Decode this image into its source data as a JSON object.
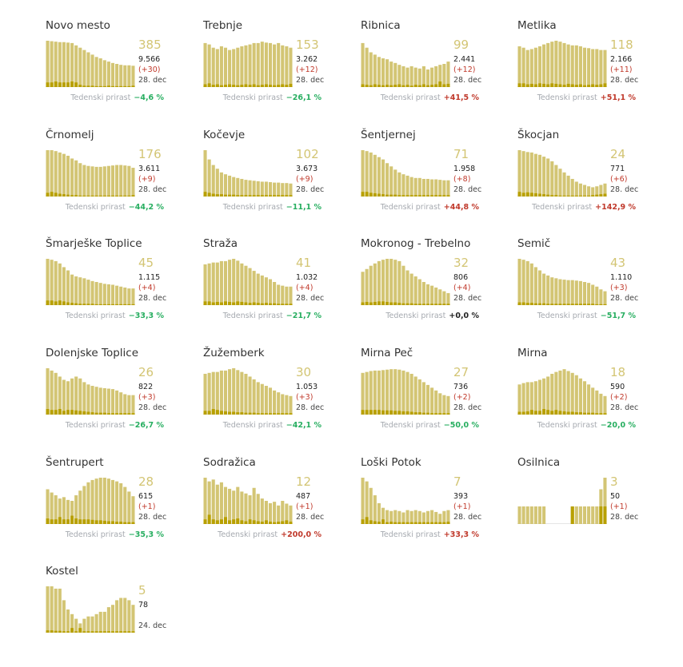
{
  "labels": {
    "growth_label": "Tedenski prirast"
  },
  "colors": {
    "bar": "#d3c574",
    "bar_new": "#b8a000",
    "positive": "#c0392b",
    "negative": "#27ae60"
  },
  "chart_data": [
    {
      "type": "bar",
      "name": "Novo mesto",
      "active": "385",
      "total": "9.566",
      "delta": "(+30)",
      "date": "28. dec",
      "growth": "−4,6 %",
      "trend": "neg",
      "values": [
        1.0,
        0.99,
        0.98,
        0.97,
        0.97,
        0.96,
        0.95,
        0.9,
        0.85,
        0.8,
        0.75,
        0.7,
        0.65,
        0.62,
        0.58,
        0.55,
        0.52,
        0.5,
        0.48,
        0.47,
        0.47,
        0.46
      ],
      "new": [
        0.1,
        0.1,
        0.12,
        0.1,
        0.1,
        0.1,
        0.12,
        0.1,
        0.05,
        0.03,
        0.03,
        0.03,
        0.02,
        0.02,
        0.02,
        0.03,
        0.02,
        0.02,
        0.02,
        0.02,
        0.02,
        0.03
      ]
    },
    {
      "type": "bar",
      "name": "Trebnje",
      "active": "153",
      "total": "3.262",
      "delta": "(+12)",
      "date": "28. dec",
      "growth": "−26,1 %",
      "trend": "neg",
      "values": [
        0.95,
        0.92,
        0.85,
        0.82,
        0.88,
        0.85,
        0.8,
        0.82,
        0.85,
        0.88,
        0.9,
        0.92,
        0.95,
        0.95,
        0.98,
        0.96,
        0.95,
        0.92,
        0.95,
        0.9,
        0.88,
        0.85
      ],
      "new": [
        0.06,
        0.08,
        0.05,
        0.06,
        0.04,
        0.05,
        0.06,
        0.05,
        0.04,
        0.05,
        0.06,
        0.05,
        0.06,
        0.04,
        0.05,
        0.06,
        0.05,
        0.04,
        0.05,
        0.06,
        0.05,
        0.07
      ]
    },
    {
      "type": "bar",
      "name": "Ribnica",
      "active": "99",
      "total": "2.441",
      "delta": "(+12)",
      "date": "28. dec",
      "growth": "+41,5 %",
      "trend": "pos",
      "values": [
        0.95,
        0.85,
        0.75,
        0.7,
        0.65,
        0.62,
        0.6,
        0.55,
        0.52,
        0.48,
        0.45,
        0.42,
        0.45,
        0.42,
        0.4,
        0.45,
        0.38,
        0.42,
        0.45,
        0.48,
        0.5,
        0.55
      ],
      "new": [
        0.06,
        0.05,
        0.04,
        0.06,
        0.05,
        0.04,
        0.05,
        0.04,
        0.05,
        0.06,
        0.04,
        0.05,
        0.03,
        0.05,
        0.04,
        0.06,
        0.04,
        0.05,
        0.06,
        0.12,
        0.06,
        0.07
      ]
    },
    {
      "type": "bar",
      "name": "Metlika",
      "active": "118",
      "total": "2.166",
      "delta": "(+11)",
      "date": "28. dec",
      "growth": "+51,1 %",
      "trend": "pos",
      "values": [
        0.88,
        0.85,
        0.8,
        0.82,
        0.85,
        0.88,
        0.92,
        0.95,
        0.98,
        1.0,
        0.98,
        0.95,
        0.92,
        0.9,
        0.9,
        0.88,
        0.85,
        0.84,
        0.82,
        0.82,
        0.8,
        0.8
      ],
      "new": [
        0.08,
        0.08,
        0.06,
        0.07,
        0.06,
        0.08,
        0.07,
        0.06,
        0.08,
        0.07,
        0.06,
        0.05,
        0.07,
        0.06,
        0.05,
        0.06,
        0.04,
        0.05,
        0.06,
        0.05,
        0.06,
        0.08
      ]
    },
    {
      "type": "bar",
      "name": "Črnomelj",
      "active": "176",
      "total": "3.611",
      "delta": "(+9)",
      "date": "28. dec",
      "growth": "−44,2 %",
      "trend": "neg",
      "values": [
        1.0,
        1.0,
        0.98,
        0.95,
        0.92,
        0.88,
        0.82,
        0.78,
        0.72,
        0.68,
        0.66,
        0.65,
        0.64,
        0.64,
        0.65,
        0.66,
        0.67,
        0.68,
        0.68,
        0.67,
        0.66,
        0.62
      ],
      "new": [
        0.08,
        0.1,
        0.08,
        0.06,
        0.05,
        0.04,
        0.03,
        0.03,
        0.02,
        0.02,
        0.02,
        0.02,
        0.02,
        0.02,
        0.02,
        0.02,
        0.02,
        0.02,
        0.02,
        0.02,
        0.02,
        0.03
      ]
    },
    {
      "type": "bar",
      "name": "Kočevje",
      "active": "102",
      "total": "3.673",
      "delta": "(+9)",
      "date": "28. dec",
      "growth": "−11,1 %",
      "trend": "neg",
      "values": [
        1.0,
        0.8,
        0.68,
        0.6,
        0.52,
        0.48,
        0.45,
        0.42,
        0.4,
        0.38,
        0.36,
        0.35,
        0.34,
        0.33,
        0.32,
        0.32,
        0.31,
        0.3,
        0.3,
        0.29,
        0.29,
        0.28
      ],
      "new": [
        0.1,
        0.08,
        0.06,
        0.05,
        0.05,
        0.04,
        0.04,
        0.04,
        0.03,
        0.03,
        0.03,
        0.03,
        0.03,
        0.03,
        0.03,
        0.03,
        0.03,
        0.03,
        0.03,
        0.03,
        0.03,
        0.03
      ]
    },
    {
      "type": "bar",
      "name": "Šentjernej",
      "active": "71",
      "total": "1.958",
      "delta": "(+8)",
      "date": "28. dec",
      "growth": "+44,8 %",
      "trend": "pos",
      "values": [
        1.0,
        0.98,
        0.95,
        0.9,
        0.85,
        0.8,
        0.72,
        0.65,
        0.58,
        0.52,
        0.48,
        0.45,
        0.42,
        0.4,
        0.4,
        0.38,
        0.38,
        0.37,
        0.37,
        0.36,
        0.35,
        0.35
      ],
      "new": [
        0.1,
        0.1,
        0.08,
        0.07,
        0.06,
        0.05,
        0.04,
        0.04,
        0.04,
        0.03,
        0.03,
        0.03,
        0.03,
        0.03,
        0.03,
        0.03,
        0.03,
        0.03,
        0.03,
        0.03,
        0.03,
        0.03
      ]
    },
    {
      "type": "bar",
      "name": "Škocjan",
      "active": "24",
      "total": "771",
      "delta": "(+6)",
      "date": "28. dec",
      "growth": "+142,9 %",
      "trend": "pos",
      "values": [
        1.0,
        0.98,
        0.96,
        0.95,
        0.92,
        0.9,
        0.86,
        0.82,
        0.76,
        0.68,
        0.6,
        0.52,
        0.45,
        0.38,
        0.32,
        0.28,
        0.25,
        0.22,
        0.2,
        0.22,
        0.25,
        0.28
      ],
      "new": [
        0.1,
        0.08,
        0.09,
        0.08,
        0.07,
        0.06,
        0.05,
        0.04,
        0.03,
        0.03,
        0.02,
        0.02,
        0.02,
        0.02,
        0.02,
        0.02,
        0.02,
        0.02,
        0.03,
        0.04,
        0.05,
        0.06
      ]
    },
    {
      "type": "bar",
      "name": "Šmarješke Toplice",
      "active": "45",
      "total": "1.115",
      "delta": "(+4)",
      "date": "28. dec",
      "growth": "−33,3 %",
      "trend": "neg",
      "values": [
        1.0,
        0.98,
        0.95,
        0.9,
        0.82,
        0.75,
        0.66,
        0.62,
        0.6,
        0.58,
        0.55,
        0.52,
        0.5,
        0.48,
        0.46,
        0.45,
        0.44,
        0.42,
        0.4,
        0.38,
        0.36,
        0.36
      ],
      "new": [
        0.1,
        0.1,
        0.08,
        0.1,
        0.08,
        0.06,
        0.05,
        0.04,
        0.03,
        0.03,
        0.03,
        0.03,
        0.02,
        0.02,
        0.02,
        0.02,
        0.02,
        0.02,
        0.02,
        0.02,
        0.02,
        0.02
      ]
    },
    {
      "type": "bar",
      "name": "Straža",
      "active": "41",
      "total": "1.032",
      "delta": "(+4)",
      "date": "28. dec",
      "growth": "−21,7 %",
      "trend": "neg",
      "values": [
        0.88,
        0.9,
        0.92,
        0.92,
        0.95,
        0.95,
        0.98,
        1.0,
        0.96,
        0.9,
        0.85,
        0.8,
        0.74,
        0.68,
        0.64,
        0.6,
        0.56,
        0.5,
        0.44,
        0.42,
        0.4,
        0.4
      ],
      "new": [
        0.08,
        0.08,
        0.06,
        0.07,
        0.06,
        0.08,
        0.07,
        0.06,
        0.08,
        0.07,
        0.06,
        0.05,
        0.06,
        0.05,
        0.04,
        0.05,
        0.04,
        0.04,
        0.03,
        0.03,
        0.03,
        0.03
      ]
    },
    {
      "type": "bar",
      "name": "Mokronog - Trebelno",
      "active": "32",
      "total": "806",
      "delta": "(+4)",
      "date": "28. dec",
      "growth": "+0,0 %",
      "trend": "zero",
      "values": [
        0.72,
        0.78,
        0.85,
        0.9,
        0.95,
        0.98,
        1.0,
        1.0,
        0.98,
        0.95,
        0.85,
        0.75,
        0.68,
        0.62,
        0.56,
        0.5,
        0.45,
        0.42,
        0.38,
        0.34,
        0.3,
        0.26
      ],
      "new": [
        0.06,
        0.07,
        0.06,
        0.07,
        0.08,
        0.08,
        0.07,
        0.06,
        0.06,
        0.05,
        0.04,
        0.04,
        0.04,
        0.03,
        0.03,
        0.03,
        0.03,
        0.03,
        0.03,
        0.03,
        0.03,
        0.03
      ]
    },
    {
      "type": "bar",
      "name": "Semič",
      "active": "43",
      "total": "1.110",
      "delta": "(+3)",
      "date": "28. dec",
      "growth": "−51,7 %",
      "trend": "neg",
      "values": [
        1.0,
        0.98,
        0.95,
        0.9,
        0.82,
        0.75,
        0.68,
        0.64,
        0.6,
        0.58,
        0.56,
        0.55,
        0.54,
        0.54,
        0.53,
        0.52,
        0.5,
        0.48,
        0.44,
        0.4,
        0.34,
        0.3
      ],
      "new": [
        0.06,
        0.06,
        0.05,
        0.05,
        0.04,
        0.04,
        0.04,
        0.03,
        0.03,
        0.03,
        0.03,
        0.03,
        0.03,
        0.03,
        0.03,
        0.03,
        0.03,
        0.03,
        0.03,
        0.02,
        0.02,
        0.02
      ]
    },
    {
      "type": "bar",
      "name": "Dolenjske Toplice",
      "active": "26",
      "total": "822",
      "delta": "(+3)",
      "date": "28. dec",
      "growth": "−26,7 %",
      "trend": "neg",
      "values": [
        1.0,
        0.95,
        0.9,
        0.82,
        0.75,
        0.72,
        0.78,
        0.82,
        0.78,
        0.7,
        0.65,
        0.62,
        0.6,
        0.58,
        0.57,
        0.56,
        0.55,
        0.52,
        0.48,
        0.44,
        0.42,
        0.42
      ],
      "new": [
        0.12,
        0.1,
        0.1,
        0.12,
        0.08,
        0.1,
        0.1,
        0.09,
        0.08,
        0.07,
        0.06,
        0.05,
        0.04,
        0.04,
        0.04,
        0.03,
        0.03,
        0.03,
        0.03,
        0.03,
        0.03,
        0.03
      ]
    },
    {
      "type": "bar",
      "name": "Žužemberk",
      "active": "30",
      "total": "1.053",
      "delta": "(+3)",
      "date": "28. dec",
      "growth": "−42,1 %",
      "trend": "neg",
      "values": [
        0.88,
        0.9,
        0.92,
        0.92,
        0.95,
        0.95,
        0.98,
        1.0,
        0.96,
        0.92,
        0.88,
        0.82,
        0.76,
        0.7,
        0.66,
        0.62,
        0.58,
        0.52,
        0.48,
        0.44,
        0.42,
        0.4
      ],
      "new": [
        0.08,
        0.08,
        0.12,
        0.1,
        0.08,
        0.07,
        0.06,
        0.06,
        0.05,
        0.05,
        0.04,
        0.04,
        0.04,
        0.03,
        0.03,
        0.03,
        0.03,
        0.03,
        0.03,
        0.03,
        0.03,
        0.03
      ]
    },
    {
      "type": "bar",
      "name": "Mirna Peč",
      "active": "27",
      "total": "736",
      "delta": "(+2)",
      "date": "28. dec",
      "growth": "−50,0 %",
      "trend": "neg",
      "values": [
        0.9,
        0.92,
        0.94,
        0.95,
        0.95,
        0.96,
        0.97,
        0.98,
        0.98,
        0.97,
        0.95,
        0.92,
        0.88,
        0.82,
        0.76,
        0.7,
        0.64,
        0.58,
        0.52,
        0.46,
        0.42,
        0.4
      ],
      "new": [
        0.1,
        0.1,
        0.1,
        0.1,
        0.1,
        0.09,
        0.09,
        0.09,
        0.08,
        0.08,
        0.07,
        0.07,
        0.06,
        0.05,
        0.05,
        0.04,
        0.04,
        0.03,
        0.03,
        0.03,
        0.03,
        0.03
      ]
    },
    {
      "type": "bar",
      "name": "Mirna",
      "active": "18",
      "total": "590",
      "delta": "(+2)",
      "date": "28. dec",
      "growth": "−20,0 %",
      "trend": "neg",
      "values": [
        0.65,
        0.68,
        0.7,
        0.7,
        0.72,
        0.75,
        0.78,
        0.82,
        0.88,
        0.92,
        0.95,
        0.98,
        0.94,
        0.9,
        0.85,
        0.78,
        0.72,
        0.65,
        0.58,
        0.52,
        0.45,
        0.4
      ],
      "new": [
        0.06,
        0.06,
        0.07,
        0.1,
        0.08,
        0.08,
        0.12,
        0.1,
        0.08,
        0.1,
        0.08,
        0.07,
        0.06,
        0.06,
        0.05,
        0.05,
        0.04,
        0.04,
        0.04,
        0.03,
        0.03,
        0.03
      ]
    },
    {
      "type": "bar",
      "name": "Šentrupert",
      "active": "28",
      "total": "615",
      "delta": "(+1)",
      "date": "28. dec",
      "growth": "−35,3 %",
      "trend": "neg",
      "values": [
        0.75,
        0.68,
        0.62,
        0.55,
        0.58,
        0.52,
        0.5,
        0.62,
        0.72,
        0.82,
        0.9,
        0.95,
        0.98,
        1.0,
        1.0,
        0.98,
        0.95,
        0.92,
        0.88,
        0.8,
        0.7,
        0.6
      ],
      "new": [
        0.12,
        0.1,
        0.1,
        0.15,
        0.1,
        0.1,
        0.18,
        0.12,
        0.1,
        0.1,
        0.1,
        0.09,
        0.08,
        0.08,
        0.07,
        0.06,
        0.06,
        0.05,
        0.05,
        0.04,
        0.04,
        0.04
      ]
    },
    {
      "type": "bar",
      "name": "Sodražica",
      "active": "12",
      "total": "487",
      "delta": "(+1)",
      "date": "28. dec",
      "growth": "+200,0 %",
      "trend": "pos",
      "values": [
        1.0,
        0.92,
        0.96,
        0.85,
        0.9,
        0.8,
        0.76,
        0.72,
        0.8,
        0.7,
        0.66,
        0.62,
        0.78,
        0.65,
        0.55,
        0.5,
        0.45,
        0.48,
        0.4,
        0.5,
        0.44,
        0.4
      ],
      "new": [
        0.1,
        0.2,
        0.1,
        0.08,
        0.1,
        0.15,
        0.08,
        0.1,
        0.12,
        0.08,
        0.06,
        0.1,
        0.08,
        0.06,
        0.05,
        0.08,
        0.05,
        0.04,
        0.05,
        0.06,
        0.08,
        0.05
      ]
    },
    {
      "type": "bar",
      "name": "Loški Potok",
      "active": "7",
      "total": "393",
      "delta": "(+1)",
      "date": "28. dec",
      "growth": "+33,3 %",
      "trend": "pos",
      "values": [
        1.0,
        0.92,
        0.78,
        0.62,
        0.45,
        0.35,
        0.3,
        0.28,
        0.3,
        0.28,
        0.25,
        0.3,
        0.28,
        0.3,
        0.28,
        0.25,
        0.28,
        0.3,
        0.26,
        0.22,
        0.28,
        0.3
      ],
      "new": [
        0.1,
        0.15,
        0.08,
        0.06,
        0.05,
        0.1,
        0.04,
        0.05,
        0.04,
        0.04,
        0.04,
        0.04,
        0.04,
        0.04,
        0.04,
        0.04,
        0.04,
        0.04,
        0.04,
        0.04,
        0.04,
        0.05
      ]
    },
    {
      "type": "bar",
      "name": "Osilnica",
      "active": "3",
      "total": "50",
      "delta": "(+1)",
      "date": "28. dec",
      "growth": "",
      "trend": "none",
      "values": [
        0.38,
        0.38,
        0.38,
        0.38,
        0.38,
        0.38,
        0.38,
        0,
        0,
        0,
        0,
        0,
        0,
        0.38,
        0.38,
        0.38,
        0.38,
        0.38,
        0.38,
        0.38,
        0.75,
        1.0
      ],
      "new": [
        0,
        0,
        0,
        0,
        0,
        0,
        0,
        0,
        0,
        0,
        0,
        0,
        0,
        0.38,
        0,
        0,
        0,
        0,
        0,
        0,
        0.38,
        0.38
      ]
    },
    {
      "type": "bar",
      "name": "Kostel",
      "active": "5",
      "total": "78",
      "delta": "",
      "date": "24. dec",
      "growth": "",
      "trend": "none",
      "values": [
        1.0,
        1.0,
        0.95,
        0.95,
        0.7,
        0.5,
        0.4,
        0.3,
        0.2,
        0.3,
        0.35,
        0.35,
        0.4,
        0.45,
        0.45,
        0.55,
        0.6,
        0.7,
        0.75,
        0.75,
        0.7,
        0.6
      ],
      "new": [
        0.05,
        0.05,
        0.04,
        0.04,
        0.03,
        0.03,
        0.1,
        0.03,
        0.1,
        0.03,
        0.03,
        0.03,
        0.03,
        0.03,
        0.03,
        0.03,
        0.03,
        0.03,
        0.03,
        0.03,
        0.03,
        0.03
      ]
    }
  ]
}
